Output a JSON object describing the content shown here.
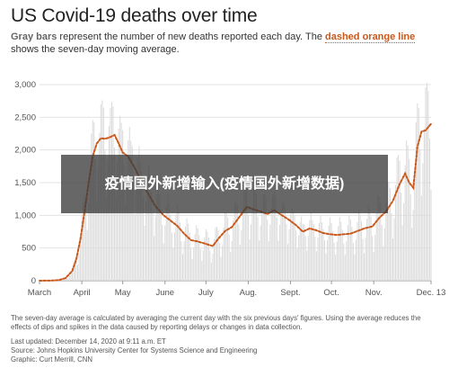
{
  "title": "US Covid-19 deaths over time",
  "subtitle": {
    "gray_phrase": "Gray bars",
    "middle": " represent the number of new deaths reported each day. The ",
    "orange_phrase": "dashed orange line",
    "end": " shows the seven-day moving average."
  },
  "banner_text": "疫情国外新增输入(疫情国外新增数据)",
  "notes": "The seven-day average is calculated by averaging the current day with the six previous days' figures. Using the average reduces the effects of dips and spikes in the data caused by reporting delays or changes in data collection.",
  "meta": {
    "updated": "Last updated: December 14, 2020 at 9:11 a.m. ET",
    "source": "Source: Johns Hopkins University Center for Systems Science and Engineering",
    "graphic": "Graphic: Curt Merrill, CNN"
  },
  "colors": {
    "bars": "#dcdcdc",
    "line": "#c9581b",
    "grid": "#e3e3e3",
    "text": "#555555"
  },
  "chart_data": {
    "type": "bar",
    "x_unit": "day",
    "x_start": "2020-03-01",
    "x_end": "2020-12-13",
    "ylim": [
      0,
      3000
    ],
    "y_ticks": [
      0,
      500,
      1000,
      1500,
      2000,
      2500,
      3000
    ],
    "y_tick_labels": [
      "0",
      "500",
      "1,000",
      "1,500",
      "2,000",
      "2,500",
      "3,000"
    ],
    "x_ticks": [
      {
        "label": "March",
        "date": "2020-03-01"
      },
      {
        "label": "April",
        "date": "2020-04-01"
      },
      {
        "label": "May",
        "date": "2020-05-01"
      },
      {
        "label": "June",
        "date": "2020-06-01"
      },
      {
        "label": "July",
        "date": "2020-07-01"
      },
      {
        "label": "Aug.",
        "date": "2020-08-01"
      },
      {
        "label": "Sept.",
        "date": "2020-09-01"
      },
      {
        "label": "Oct.",
        "date": "2020-10-01"
      },
      {
        "label": "Nov.",
        "date": "2020-11-01"
      },
      {
        "label": "Dec. 13",
        "date": "2020-12-13"
      }
    ],
    "grid": true,
    "series": [
      {
        "type": "line",
        "style": "dashed",
        "points": [
          [
            "2020-03-01",
            0
          ],
          [
            "2020-03-10",
            3
          ],
          [
            "2020-03-15",
            10
          ],
          [
            "2020-03-20",
            40
          ],
          [
            "2020-03-25",
            150
          ],
          [
            "2020-03-28",
            330
          ],
          [
            "2020-03-31",
            640
          ],
          [
            "2020-04-03",
            1050
          ],
          [
            "2020-04-06",
            1500
          ],
          [
            "2020-04-09",
            1900
          ],
          [
            "2020-04-12",
            2100
          ],
          [
            "2020-04-15",
            2180
          ],
          [
            "2020-04-18",
            2170
          ],
          [
            "2020-04-21",
            2190
          ],
          [
            "2020-04-25",
            2230
          ],
          [
            "2020-04-28",
            2100
          ],
          [
            "2020-05-01",
            1960
          ],
          [
            "2020-05-05",
            1900
          ],
          [
            "2020-05-10",
            1720
          ],
          [
            "2020-05-15",
            1500
          ],
          [
            "2020-05-20",
            1320
          ],
          [
            "2020-05-25",
            1140
          ],
          [
            "2020-05-31",
            1000
          ],
          [
            "2020-06-05",
            920
          ],
          [
            "2020-06-10",
            840
          ],
          [
            "2020-06-15",
            720
          ],
          [
            "2020-06-20",
            620
          ],
          [
            "2020-06-25",
            600
          ],
          [
            "2020-06-30",
            570
          ],
          [
            "2020-07-06",
            530
          ],
          [
            "2020-07-10",
            640
          ],
          [
            "2020-07-15",
            760
          ],
          [
            "2020-07-20",
            820
          ],
          [
            "2020-07-25",
            960
          ],
          [
            "2020-07-31",
            1130
          ],
          [
            "2020-08-05",
            1090
          ],
          [
            "2020-08-10",
            1060
          ],
          [
            "2020-08-15",
            1020
          ],
          [
            "2020-08-20",
            1080
          ],
          [
            "2020-08-25",
            1010
          ],
          [
            "2020-08-31",
            930
          ],
          [
            "2020-09-05",
            850
          ],
          [
            "2020-09-10",
            750
          ],
          [
            "2020-09-15",
            800
          ],
          [
            "2020-09-20",
            770
          ],
          [
            "2020-09-25",
            730
          ],
          [
            "2020-09-30",
            710
          ],
          [
            "2020-10-05",
            700
          ],
          [
            "2020-10-10",
            710
          ],
          [
            "2020-10-15",
            720
          ],
          [
            "2020-10-20",
            760
          ],
          [
            "2020-10-25",
            800
          ],
          [
            "2020-10-31",
            830
          ],
          [
            "2020-11-05",
            960
          ],
          [
            "2020-11-10",
            1060
          ],
          [
            "2020-11-15",
            1220
          ],
          [
            "2020-11-20",
            1480
          ],
          [
            "2020-11-24",
            1640
          ],
          [
            "2020-11-27",
            1500
          ],
          [
            "2020-11-30",
            1420
          ],
          [
            "2020-12-03",
            2050
          ],
          [
            "2020-12-06",
            2280
          ],
          [
            "2020-12-09",
            2300
          ],
          [
            "2020-12-13",
            2400
          ]
        ]
      }
    ]
  }
}
